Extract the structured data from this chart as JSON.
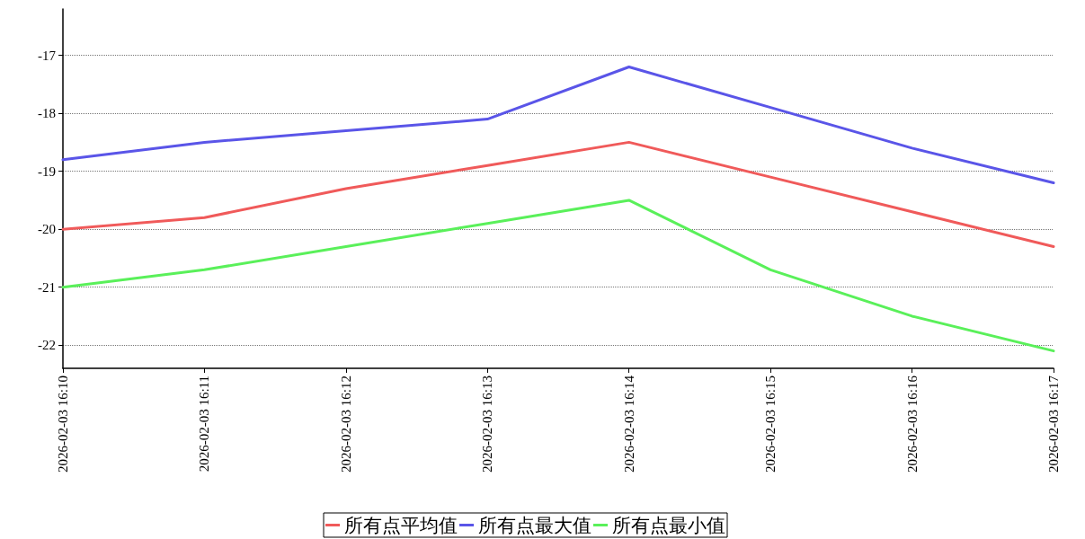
{
  "chart_data": {
    "type": "line",
    "categories": [
      "2026-02-03 16:10",
      "2026-02-03 16:11",
      "2026-02-03 16:12",
      "2026-02-03 16:13",
      "2026-02-03 16:14",
      "2026-02-03 16:15",
      "2026-02-03 16:16",
      "2026-02-03 16:17"
    ],
    "series": [
      {
        "name": "所有点平均值",
        "color": "#f05a5a",
        "values": [
          -20,
          -19.8,
          -19.3,
          -18.9,
          -18.5,
          -19.1,
          -19.7,
          -20.3
        ]
      },
      {
        "name": "所有点最大值",
        "color": "#5a55e8",
        "values": [
          -18.8,
          -18.5,
          -18.3,
          -18.1,
          -17.2,
          -17.9,
          -18.6,
          -19.2
        ]
      },
      {
        "name": "所有点最小值",
        "color": "#5af05a",
        "values": [
          -21,
          -20.7,
          -20.3,
          -19.9,
          -19.5,
          -20.7,
          -21.5,
          -22.1
        ]
      }
    ],
    "ylim": [
      -22.4,
      -16.2
    ],
    "yticks": [
      -22,
      -21,
      -20,
      -19,
      -18,
      -17
    ],
    "grid": "y",
    "legend": "bottom",
    "marker": "none",
    "line_style": "solid"
  }
}
